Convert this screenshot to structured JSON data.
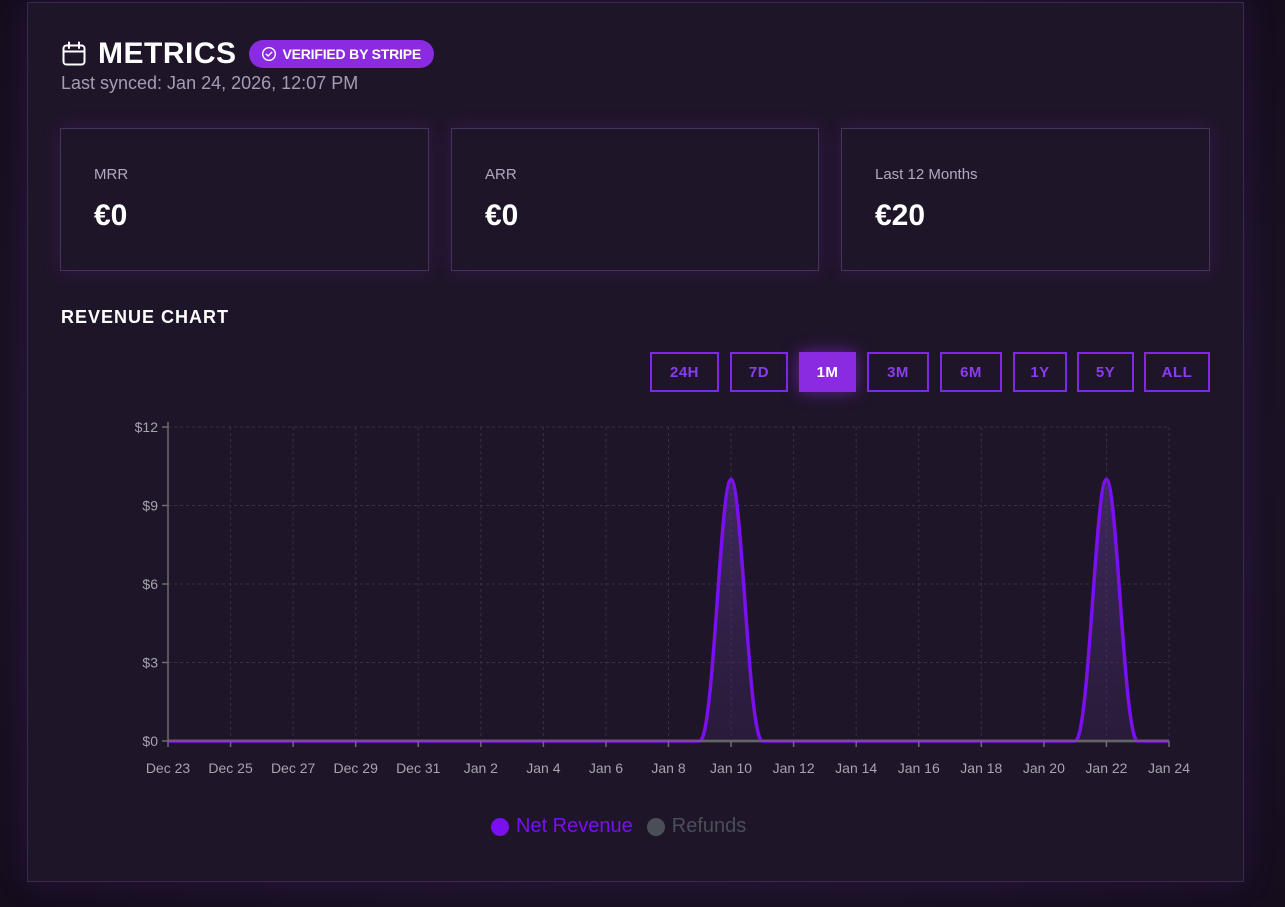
{
  "header": {
    "title": "METRICS",
    "badge": "VERIFIED BY STRIPE",
    "icon": "calendar-icon",
    "badge_icon": "check-circle-icon",
    "last_synced": "Last synced: Jan 24, 2026, 12:07 PM"
  },
  "cards": [
    {
      "label": "MRR",
      "value": "€0"
    },
    {
      "label": "ARR",
      "value": "€0"
    },
    {
      "label": "Last 12 Months",
      "value": "€20"
    }
  ],
  "section": {
    "title": "REVENUE CHART"
  },
  "ranges": {
    "items": [
      "24H",
      "7D",
      "1M",
      "3M",
      "6M",
      "1Y",
      "5Y",
      "ALL"
    ],
    "active": "1M"
  },
  "colors": {
    "accent": "#8a2be2",
    "net_revenue": "#7a0ff0",
    "refunds": "#4a4f57",
    "background": "#1f1529"
  },
  "chart_data": {
    "type": "area",
    "ylim": [
      0,
      12
    ],
    "yticks": [
      0,
      3,
      6,
      9,
      12
    ],
    "ytick_labels": [
      "$0",
      "$3",
      "$6",
      "$9",
      "$12"
    ],
    "xtick_labels": [
      "Dec 23",
      "Dec 25",
      "Dec 27",
      "Dec 29",
      "Dec 31",
      "Jan 2",
      "Jan 4",
      "Jan 6",
      "Jan 8",
      "Jan 10",
      "Jan 12",
      "Jan 14",
      "Jan 16",
      "Jan 18",
      "Jan 20",
      "Jan 22",
      "Jan 24"
    ],
    "x": [
      "Dec 23",
      "Dec 24",
      "Dec 25",
      "Dec 26",
      "Dec 27",
      "Dec 28",
      "Dec 29",
      "Dec 30",
      "Dec 31",
      "Jan 1",
      "Jan 2",
      "Jan 3",
      "Jan 4",
      "Jan 5",
      "Jan 6",
      "Jan 7",
      "Jan 8",
      "Jan 9",
      "Jan 10",
      "Jan 11",
      "Jan 12",
      "Jan 13",
      "Jan 14",
      "Jan 15",
      "Jan 16",
      "Jan 17",
      "Jan 18",
      "Jan 19",
      "Jan 20",
      "Jan 21",
      "Jan 22",
      "Jan 23",
      "Jan 24"
    ],
    "grid": true,
    "legend": "bottom-center",
    "series": [
      {
        "name": "Net Revenue",
        "values": [
          0,
          0,
          0,
          0,
          0,
          0,
          0,
          0,
          0,
          0,
          0,
          0,
          0,
          0,
          0,
          0,
          0,
          0,
          10,
          0,
          0,
          0,
          0,
          0,
          0,
          0,
          0,
          0,
          0,
          0,
          10,
          0,
          0
        ]
      },
      {
        "name": "Refunds",
        "values": [
          0,
          0,
          0,
          0,
          0,
          0,
          0,
          0,
          0,
          0,
          0,
          0,
          0,
          0,
          0,
          0,
          0,
          0,
          0,
          0,
          0,
          0,
          0,
          0,
          0,
          0,
          0,
          0,
          0,
          0,
          0,
          0,
          0
        ]
      }
    ]
  }
}
